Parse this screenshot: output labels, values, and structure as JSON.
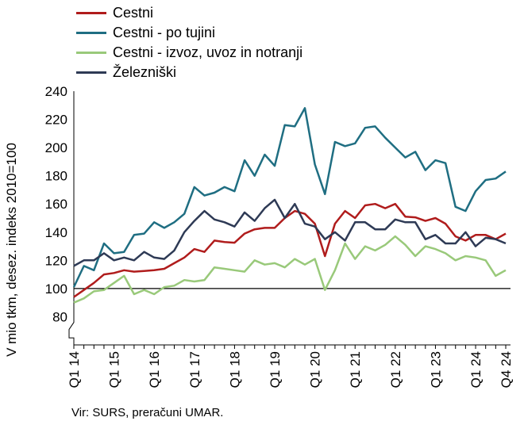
{
  "chart_data": {
    "type": "line",
    "ylabel": "V mio tkm, desez. indeks 2010=100",
    "ylim": [
      60,
      240
    ],
    "yticks": [
      80,
      100,
      120,
      140,
      160,
      180,
      200,
      220,
      240
    ],
    "reference_line": 100,
    "x_tick_labels": [
      "Q1 14",
      "Q1 15",
      "Q1 16",
      "Q1 17",
      "Q1 18",
      "Q1 19",
      "Q1 20",
      "Q1 21",
      "Q1 22",
      "Q1 23",
      "Q1 24",
      "Q4 24"
    ],
    "x": [
      "Q1 14",
      "Q2 14",
      "Q3 14",
      "Q4 14",
      "Q1 15",
      "Q2 15",
      "Q3 15",
      "Q4 15",
      "Q1 16",
      "Q2 16",
      "Q3 16",
      "Q4 16",
      "Q1 17",
      "Q2 17",
      "Q3 17",
      "Q4 17",
      "Q1 18",
      "Q2 18",
      "Q3 18",
      "Q4 18",
      "Q1 19",
      "Q2 19",
      "Q3 19",
      "Q4 19",
      "Q1 20",
      "Q2 20",
      "Q3 20",
      "Q4 20",
      "Q1 21",
      "Q2 21",
      "Q3 21",
      "Q4 21",
      "Q1 22",
      "Q2 22",
      "Q3 22",
      "Q4 22",
      "Q1 23",
      "Q2 23",
      "Q3 23",
      "Q4 23",
      "Q1 24",
      "Q2 24",
      "Q3 24",
      "Q4 24"
    ],
    "series": [
      {
        "name": "Cestni",
        "color": "#b01c1c",
        "values": [
          94,
          99,
          104,
          110,
          111,
          113,
          112,
          112.5,
          113,
          114,
          118,
          122,
          128,
          126,
          134,
          133,
          132.5,
          139,
          142,
          143,
          143,
          150,
          155,
          153,
          146,
          123,
          146,
          155,
          150,
          159,
          160,
          157,
          160,
          151,
          150.5,
          148,
          150,
          146,
          137,
          134,
          138,
          138,
          135,
          139
        ]
      },
      {
        "name": "Cestni - po tujini",
        "color": "#1f6e82",
        "values": [
          101,
          116,
          113,
          132,
          125,
          126,
          138,
          139,
          147,
          143,
          147,
          153,
          172,
          166,
          168,
          172,
          169,
          191,
          180,
          195,
          187,
          216,
          215,
          228,
          188,
          167,
          204,
          201,
          203,
          214,
          215,
          207,
          200,
          193,
          197,
          184,
          191,
          189,
          158,
          155,
          169,
          177,
          178,
          183
        ]
      },
      {
        "name": "Cestni - izvoz, uvoz in notranji",
        "color": "#99c97a",
        "values": [
          90,
          93,
          98,
          99,
          104,
          109,
          96,
          99,
          96,
          101,
          102,
          106,
          105,
          106,
          115,
          114,
          113,
          112,
          120,
          117,
          118,
          115,
          121,
          117,
          121,
          99,
          113,
          132,
          121,
          130,
          127,
          131,
          137,
          131,
          123,
          130,
          128,
          125,
          120,
          123,
          122,
          120,
          109,
          113
        ]
      },
      {
        "name": "Železniški",
        "color": "#2e3a55",
        "values": [
          116,
          120,
          120,
          125,
          120,
          122,
          120,
          126,
          122,
          121,
          127,
          140,
          148,
          155,
          149,
          147,
          144,
          154,
          148,
          157,
          163,
          150,
          160,
          146,
          144,
          135,
          140,
          134,
          147,
          147,
          142,
          142,
          149,
          147,
          147,
          135,
          138,
          132,
          132,
          140,
          130,
          136,
          135,
          132
        ]
      }
    ]
  },
  "source_note": "Vir: SURS, preračuni UMAR."
}
